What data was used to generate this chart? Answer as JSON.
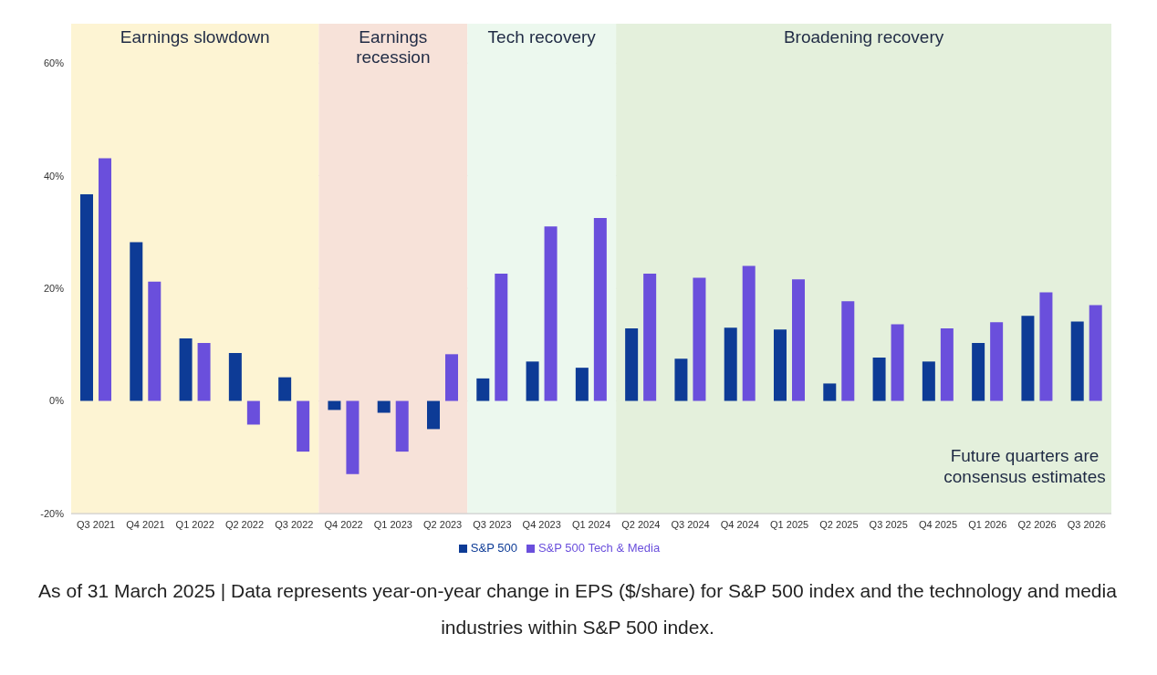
{
  "chart_data": {
    "type": "bar",
    "categories": [
      "Q3 2021",
      "Q4 2021",
      "Q1 2022",
      "Q2 2022",
      "Q3 2022",
      "Q4 2022",
      "Q1 2023",
      "Q2 2023",
      "Q3 2023",
      "Q4 2023",
      "Q1 2024",
      "Q2 2024",
      "Q3 2024",
      "Q4 2024",
      "Q1 2025",
      "Q2 2025",
      "Q3 2025",
      "Q4 2025",
      "Q1 2026",
      "Q2 2026",
      "Q3 2026"
    ],
    "series": [
      {
        "name": "S&P 500",
        "color": "#0d3b96",
        "values": [
          36.7,
          28.2,
          11.1,
          8.5,
          4.2,
          -1.6,
          -2.1,
          -5.0,
          4.0,
          7.0,
          5.9,
          12.9,
          7.5,
          13.0,
          12.7,
          3.1,
          7.7,
          7.0,
          10.3,
          15.1,
          14.1
        ]
      },
      {
        "name": "S&P 500 Tech & Media",
        "color": "#6a4fdc",
        "values": [
          43.1,
          21.2,
          10.3,
          -4.2,
          -9.0,
          -13.0,
          -9.0,
          8.3,
          22.6,
          31.0,
          32.5,
          22.6,
          21.9,
          24.0,
          21.6,
          17.7,
          13.6,
          12.9,
          14.0,
          19.3,
          17.0
        ]
      }
    ],
    "ylim": [
      -20,
      67
    ],
    "yticks": [
      {
        "value": -20,
        "label": "-20%"
      },
      {
        "value": 0,
        "label": "0%"
      },
      {
        "value": 20,
        "label": "20%"
      },
      {
        "value": 40,
        "label": "40%"
      },
      {
        "value": 60,
        "label": "60%"
      }
    ],
    "grid": "y",
    "legend": "bottom",
    "bands": [
      {
        "axis": "x",
        "from": "Q3 2021",
        "to": "Q3 2022",
        "label": "Earnings slowdown",
        "color": "#fdf4d3"
      },
      {
        "axis": "x",
        "from": "Q4 2022",
        "to": "Q2 2023",
        "label": "Earnings recession",
        "color": "#f7e2d9"
      },
      {
        "axis": "x",
        "from": "Q3 2023",
        "to": "Q1 2024",
        "label": "Tech recovery",
        "color": "#ecf8ee"
      },
      {
        "axis": "x",
        "from": "Q2 2024",
        "to": "Q3 2026",
        "label": "Broadening recovery",
        "color": "#e4f0dc"
      }
    ],
    "annotations": [
      "Future quarters are consensus estimates",
      "As of 31 March 2025 | Data represents year-on-year change in EPS ($/share) for S&P 500 index and the technology and media industries within S&P 500 index."
    ]
  }
}
